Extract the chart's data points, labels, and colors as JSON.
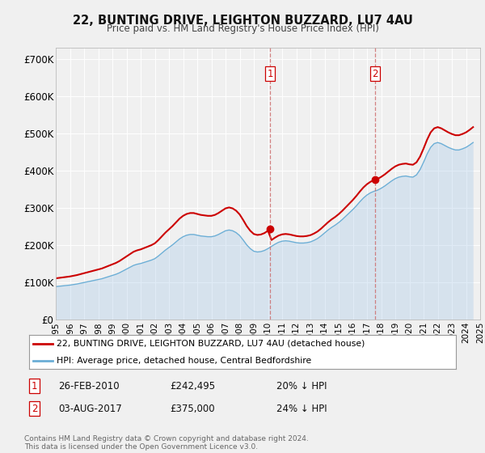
{
  "title": "22, BUNTING DRIVE, LEIGHTON BUZZARD, LU7 4AU",
  "subtitle": "Price paid vs. HM Land Registry's House Price Index (HPI)",
  "hpi_color": "#a8c8e8",
  "hpi_line_color": "#6baed6",
  "price_color": "#cc0000",
  "annotation_color": "#cc0000",
  "background_color": "#f0f0f0",
  "plot_bg_color": "#f0f0f0",
  "grid_color": "#ffffff",
  "ylim": [
    0,
    730000
  ],
  "yticks": [
    0,
    100000,
    200000,
    300000,
    400000,
    500000,
    600000,
    700000
  ],
  "ytick_labels": [
    "£0",
    "£100K",
    "£200K",
    "£300K",
    "£400K",
    "£500K",
    "£600K",
    "£700K"
  ],
  "legend_line1": "22, BUNTING DRIVE, LEIGHTON BUZZARD, LU7 4AU (detached house)",
  "legend_line2": "HPI: Average price, detached house, Central Bedfordshire",
  "sale1_date": "26-FEB-2010",
  "sale1_price": 242495,
  "sale1_price_str": "£242,495",
  "sale1_note": "20% ↓ HPI",
  "sale2_date": "03-AUG-2017",
  "sale2_price": 375000,
  "sale2_price_str": "£375,000",
  "sale2_note": "24% ↓ HPI",
  "footnote": "Contains HM Land Registry data © Crown copyright and database right 2024.\nThis data is licensed under the Open Government Licence v3.0.",
  "hpi_years": [
    1995,
    1995.25,
    1995.5,
    1995.75,
    1996,
    1996.25,
    1996.5,
    1996.75,
    1997,
    1997.25,
    1997.5,
    1997.75,
    1998,
    1998.25,
    1998.5,
    1998.75,
    1999,
    1999.25,
    1999.5,
    1999.75,
    2000,
    2000.25,
    2000.5,
    2000.75,
    2001,
    2001.25,
    2001.5,
    2001.75,
    2002,
    2002.25,
    2002.5,
    2002.75,
    2003,
    2003.25,
    2003.5,
    2003.75,
    2004,
    2004.25,
    2004.5,
    2004.75,
    2005,
    2005.25,
    2005.5,
    2005.75,
    2006,
    2006.25,
    2006.5,
    2006.75,
    2007,
    2007.25,
    2007.5,
    2007.75,
    2008,
    2008.25,
    2008.5,
    2008.75,
    2009,
    2009.25,
    2009.5,
    2009.75,
    2010,
    2010.25,
    2010.5,
    2010.75,
    2011,
    2011.25,
    2011.5,
    2011.75,
    2012,
    2012.25,
    2012.5,
    2012.75,
    2013,
    2013.25,
    2013.5,
    2013.75,
    2014,
    2014.25,
    2014.5,
    2014.75,
    2015,
    2015.25,
    2015.5,
    2015.75,
    2016,
    2016.25,
    2016.5,
    2016.75,
    2017,
    2017.25,
    2017.5,
    2017.75,
    2018,
    2018.25,
    2018.5,
    2018.75,
    2019,
    2019.25,
    2019.5,
    2019.75,
    2020,
    2020.25,
    2020.5,
    2020.75,
    2021,
    2021.25,
    2021.5,
    2021.75,
    2022,
    2022.25,
    2022.5,
    2022.75,
    2023,
    2023.25,
    2023.5,
    2023.75,
    2024,
    2024.25,
    2024.5
  ],
  "hpi_values": [
    88000,
    89000,
    90000,
    91000,
    92000,
    93500,
    95000,
    97000,
    99000,
    101000,
    103000,
    105000,
    107000,
    109000,
    112000,
    115000,
    118000,
    121000,
    125000,
    130000,
    135000,
    140000,
    145000,
    148000,
    150000,
    153000,
    156000,
    159000,
    163000,
    170000,
    178000,
    186000,
    193000,
    200000,
    208000,
    216000,
    222000,
    226000,
    228000,
    228000,
    226000,
    224000,
    223000,
    222000,
    222000,
    224000,
    228000,
    233000,
    238000,
    240000,
    238000,
    233000,
    225000,
    213000,
    200000,
    190000,
    183000,
    181000,
    182000,
    185000,
    190000,
    196000,
    202000,
    207000,
    210000,
    211000,
    210000,
    208000,
    206000,
    205000,
    205000,
    206000,
    208000,
    212000,
    217000,
    224000,
    232000,
    240000,
    247000,
    253000,
    260000,
    268000,
    277000,
    286000,
    295000,
    305000,
    316000,
    326000,
    334000,
    340000,
    344000,
    347000,
    352000,
    358000,
    365000,
    372000,
    378000,
    382000,
    384000,
    385000,
    383000,
    382000,
    388000,
    402000,
    422000,
    444000,
    462000,
    472000,
    475000,
    472000,
    467000,
    462000,
    458000,
    455000,
    455000,
    458000,
    462000,
    468000,
    475000
  ],
  "price_years": [
    1995.2,
    2010.15,
    2017.58
  ],
  "price_values": [
    68000,
    242495,
    375000
  ],
  "sale1_x": 2010.15,
  "sale1_y": 242495,
  "sale2_x": 2017.58,
  "sale2_y": 375000,
  "vline1_x": 2010.15,
  "vline2_x": 2017.58,
  "xmin": 1995,
  "xmax": 2025
}
